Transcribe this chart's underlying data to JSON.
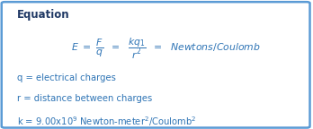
{
  "background_color": "#ffffff",
  "border_color": "#5b9bd5",
  "title": "Equation",
  "title_color": "#1f3864",
  "equation_color": "#2e74b5",
  "definition_color": "#2e74b5",
  "figsize": [
    3.48,
    1.44
  ],
  "dpi": 100,
  "equation": "$\\mathit{E}\\ =\\ \\dfrac{F}{q}\\ \\ =\\ \\ \\dfrac{kq_{1}}{r^{2}}\\ \\ =\\ \\ \\mathit{Newtons/Coulomb}$",
  "defs": [
    "q = electrical charges",
    "r = distance between charges",
    "k = 9.00x10$^{9}$ Newton-meter$^{2}$/Coulomb$^{2}$"
  ]
}
